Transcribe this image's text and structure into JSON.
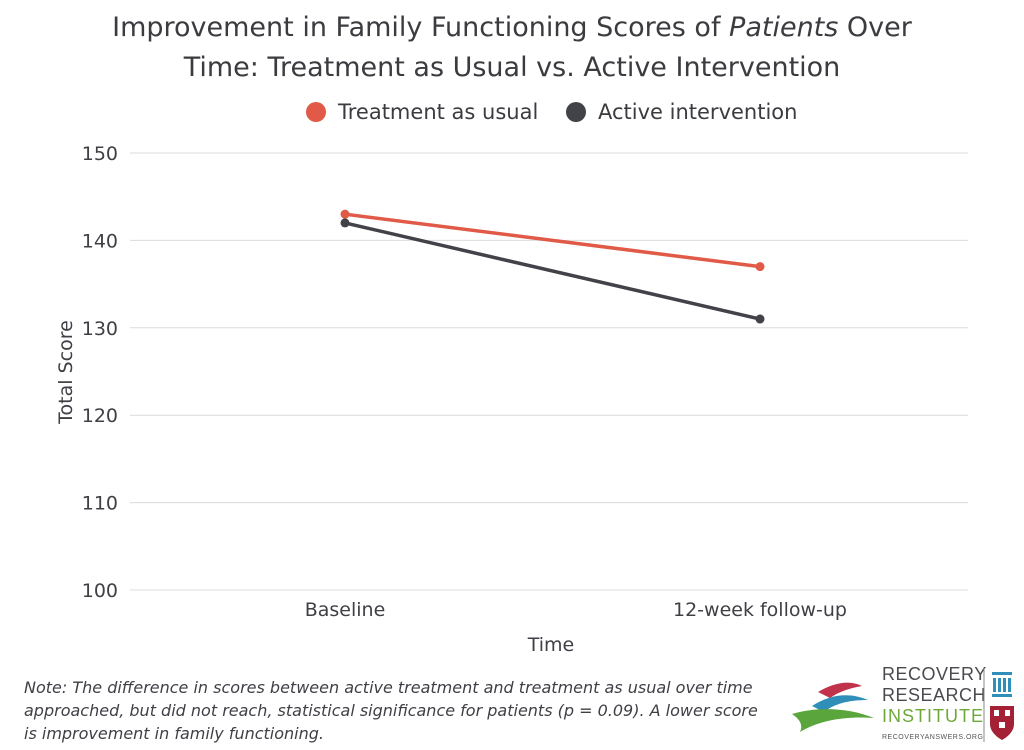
{
  "title_part1": "Improvement in Family Functioning Scores of ",
  "title_italic": "Patients",
  "title_part2": " Over",
  "title_line2": "Time: Treatment as Usual vs. Active Intervention",
  "note": "Note: The difference in scores between active treatment and treatment as usual over time approached, but did not reach, statistical significance for patients (p = 0.09). A lower score is improvement in family functioning.",
  "logo": {
    "line1": "RECOVERY",
    "line2": "RESEARCH",
    "line3": "INSTITUTE",
    "url": "RECOVERYANSWERS.ORG"
  },
  "colors": {
    "treatment_as_usual": "#e05a47",
    "active_intervention": "#424249",
    "grid": "#dcdcdc"
  },
  "chart_data": {
    "type": "line",
    "categories": [
      "Baseline",
      "12-week follow-up"
    ],
    "series": [
      {
        "name": "Treatment as usual",
        "values": [
          143,
          137
        ],
        "color": "#e05a47"
      },
      {
        "name": "Active intervention",
        "values": [
          142,
          131
        ],
        "color": "#424249"
      }
    ],
    "xlabel": "Time",
    "ylabel": "Total Score",
    "ylim": [
      100,
      150
    ],
    "yticks": [
      100,
      110,
      120,
      130,
      140,
      150
    ],
    "grid": true,
    "legend_position": "top-center"
  }
}
